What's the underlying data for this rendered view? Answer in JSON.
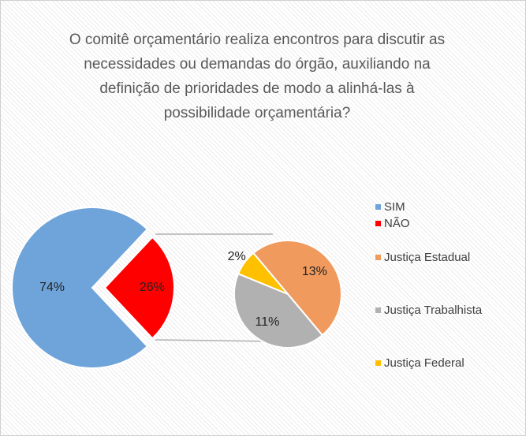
{
  "chart_data": {
    "type": "pie-of-pie",
    "title": "O comitê orçamentário realiza encontros para discutir as necessidades ou demandas do órgão, auxiliando na definição de prioridades de modo a alinhá-las à possibilidade orçamentária?",
    "categories": [
      "SIM",
      "NÃO"
    ],
    "values": [
      74,
      26
    ],
    "value_labels": [
      "74%",
      "26%"
    ],
    "colors": [
      "#6fa4da",
      "#ff0000"
    ],
    "secondary": {
      "categories": [
        "Justiça Estadual",
        "Justiça Trabalhista",
        "Justiça Federal"
      ],
      "values": [
        13,
        11,
        2
      ],
      "value_labels": [
        "13%",
        "11%",
        "2%"
      ],
      "colors": [
        "#f09a5e",
        "#b1b1b1",
        "#ffc000"
      ]
    },
    "legend_position": "right"
  }
}
